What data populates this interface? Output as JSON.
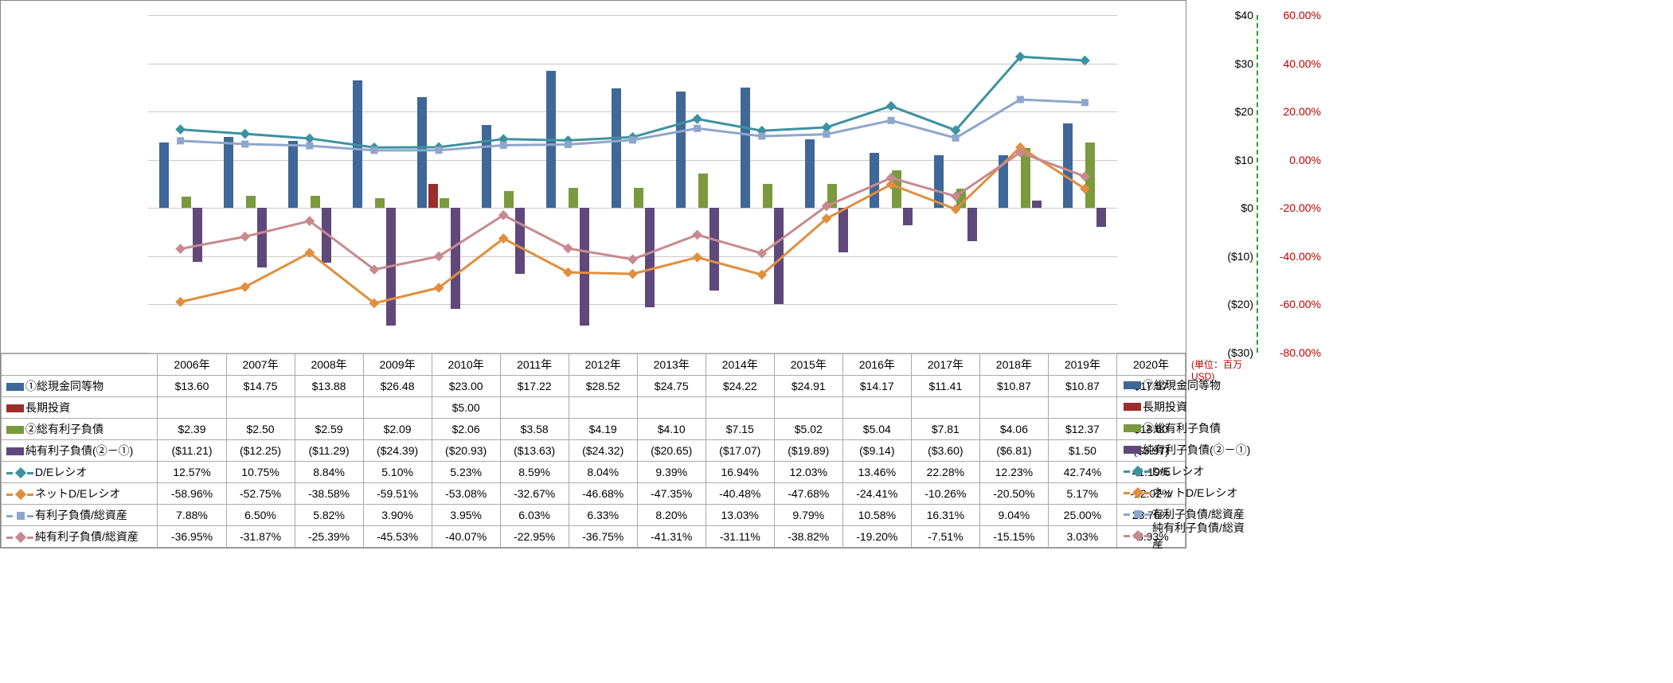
{
  "years": [
    "2006年",
    "2007年",
    "2008年",
    "2009年",
    "2010年",
    "2011年",
    "2012年",
    "2013年",
    "2014年",
    "2015年",
    "2016年",
    "2017年",
    "2018年",
    "2019年",
    "2020年"
  ],
  "left_axis": {
    "min": -30,
    "max": 40,
    "step": 10,
    "labels": [
      "($30)",
      "($20)",
      "($10)",
      "$0",
      "$10",
      "$20",
      "$30",
      "$40"
    ],
    "zero_index": 3,
    "unit": "(単位：百万USD)"
  },
  "right_axis": {
    "min": -80,
    "max": 60,
    "step": 20,
    "labels": [
      "-80.00%",
      "-60.00%",
      "-40.00%",
      "-20.00%",
      "0.00%",
      "20.00%",
      "40.00%",
      "60.00%"
    ]
  },
  "grid_color": "#c9c9c9",
  "background": "#ffffff",
  "bar_series": [
    {
      "name": "①総現金同等物",
      "color": "#3f6797",
      "values": [
        13.6,
        14.75,
        13.88,
        26.48,
        23.0,
        17.22,
        28.52,
        24.75,
        24.22,
        24.91,
        14.17,
        11.41,
        10.87,
        10.87,
        17.57
      ],
      "fmt": [
        "$13.60",
        "$14.75",
        "$13.88",
        "$26.48",
        "$23.00",
        "$17.22",
        "$28.52",
        "$24.75",
        "$24.22",
        "$24.91",
        "$14.17",
        "$11.41",
        "$10.87",
        "$10.87",
        "$17.57"
      ]
    },
    {
      "name": "長期投資",
      "color": "#9b2d2a",
      "values": [
        null,
        null,
        null,
        null,
        5.0,
        null,
        null,
        null,
        null,
        null,
        null,
        null,
        null,
        null,
        null
      ],
      "fmt": [
        "",
        "",
        "",
        "",
        "$5.00",
        "",
        "",
        "",
        "",
        "",
        "",
        "",
        "",
        "",
        ""
      ]
    },
    {
      "name": "②総有利子負債",
      "color": "#7a9a3d",
      "values": [
        2.39,
        2.5,
        2.59,
        2.09,
        2.06,
        3.58,
        4.19,
        4.1,
        7.15,
        5.02,
        5.04,
        7.81,
        4.06,
        12.37,
        13.6
      ],
      "fmt": [
        "$2.39",
        "$2.50",
        "$2.59",
        "$2.09",
        "$2.06",
        "$3.58",
        "$4.19",
        "$4.10",
        "$7.15",
        "$5.02",
        "$5.04",
        "$7.81",
        "$4.06",
        "$12.37",
        "$13.60"
      ]
    },
    {
      "name": "純有利子負債(②－①)",
      "color": "#5e497a",
      "values": [
        -11.21,
        -12.25,
        -11.29,
        -24.39,
        -20.93,
        -13.63,
        -24.32,
        -20.65,
        -17.07,
        -19.89,
        -9.14,
        -3.6,
        -6.81,
        1.5,
        -3.97
      ],
      "fmt": [
        "($11.21)",
        "($12.25)",
        "($11.29)",
        "($24.39)",
        "($20.93)",
        "($13.63)",
        "($24.32)",
        "($20.65)",
        "($17.07)",
        "($19.89)",
        "($9.14)",
        "($3.60)",
        "($6.81)",
        "$1.50",
        "($3.97)"
      ]
    }
  ],
  "line_series": [
    {
      "name": "D/Eレシオ",
      "color": "#3d92a0",
      "marker": "diamond",
      "values": [
        12.57,
        10.75,
        8.84,
        5.1,
        5.23,
        8.59,
        8.04,
        9.39,
        16.94,
        12.03,
        13.46,
        22.28,
        12.23,
        42.74,
        41.19
      ],
      "fmt": [
        "12.57%",
        "10.75%",
        "8.84%",
        "5.10%",
        "5.23%",
        "8.59%",
        "8.04%",
        "9.39%",
        "16.94%",
        "12.03%",
        "13.46%",
        "22.28%",
        "12.23%",
        "42.74%",
        "41.19%"
      ]
    },
    {
      "name": "ネットD/Eレシオ",
      "color": "#e08f3e",
      "marker": "diamond",
      "values": [
        -58.96,
        -52.75,
        -38.58,
        -59.51,
        -53.08,
        -32.67,
        -46.68,
        -47.35,
        -40.48,
        -47.68,
        -24.41,
        -10.26,
        -20.5,
        5.17,
        -12.02
      ],
      "fmt": [
        "-58.96%",
        "-52.75%",
        "-38.58%",
        "-59.51%",
        "-53.08%",
        "-32.67%",
        "-46.68%",
        "-47.35%",
        "-40.48%",
        "-47.68%",
        "-24.41%",
        "-10.26%",
        "-20.50%",
        "5.17%",
        "-12.02%"
      ]
    },
    {
      "name": "有利子負債/総資産",
      "color": "#8fa6cc",
      "marker": "square",
      "values": [
        7.88,
        6.5,
        5.82,
        3.9,
        3.95,
        6.03,
        6.33,
        8.2,
        13.03,
        9.79,
        10.58,
        16.31,
        9.04,
        25.0,
        23.76
      ],
      "fmt": [
        "7.88%",
        "6.50%",
        "5.82%",
        "3.90%",
        "3.95%",
        "6.03%",
        "6.33%",
        "8.20%",
        "13.03%",
        "9.79%",
        "10.58%",
        "16.31%",
        "9.04%",
        "25.00%",
        "23.76%"
      ]
    },
    {
      "name": "純有利子負債/総資産",
      "color": "#c78a8f",
      "marker": "diamond",
      "values": [
        -36.95,
        -31.87,
        -25.39,
        -45.53,
        -40.07,
        -22.95,
        -36.75,
        -41.31,
        -31.11,
        -38.82,
        -19.2,
        -7.51,
        -15.15,
        3.03,
        -6.93
      ],
      "fmt": [
        "-36.95%",
        "-31.87%",
        "-25.39%",
        "-45.53%",
        "-40.07%",
        "-22.95%",
        "-36.75%",
        "-41.31%",
        "-31.11%",
        "-38.82%",
        "-19.20%",
        "-7.51%",
        "-15.15%",
        "3.03%",
        "-6.93%"
      ]
    }
  ]
}
